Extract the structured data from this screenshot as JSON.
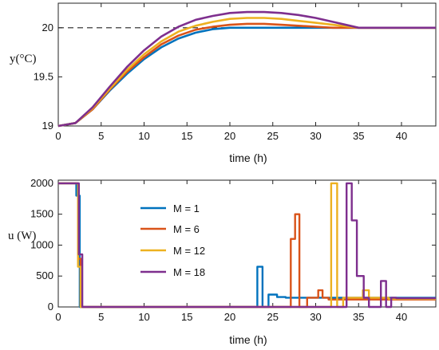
{
  "charts": [
    {
      "type": "line",
      "xlabel": "time (h)",
      "ylabel": "y(°C)",
      "xlim": [
        0,
        44
      ],
      "ylim": [
        19,
        20.25
      ],
      "xticks": [
        "0",
        "5",
        "10",
        "15",
        "20",
        "25",
        "30",
        "35",
        "40"
      ],
      "yticks": [
        "19",
        "19.5",
        "20"
      ],
      "reference": 20,
      "series_colors": [
        "#0072BD",
        "#D95319",
        "#EDB120",
        "#7E2F8E"
      ]
    },
    {
      "type": "line",
      "xlabel": "time (h)",
      "ylabel": "u (W)",
      "xlim": [
        0,
        44
      ],
      "ylim": [
        0,
        2050
      ],
      "xticks": [
        "0",
        "5",
        "10",
        "15",
        "20",
        "25",
        "30",
        "35",
        "40"
      ],
      "yticks": [
        "0",
        "500",
        "1000",
        "1500",
        "2000"
      ],
      "legend": [
        "M = 1",
        "M = 6",
        "M = 12",
        "M  = 18"
      ],
      "series_colors": [
        "#0072BD",
        "#D95319",
        "#EDB120",
        "#7E2F8E"
      ]
    }
  ],
  "chart_data": [
    {
      "type": "line",
      "xlabel": "time (h)",
      "ylabel": "y(°C)",
      "xlim": [
        0,
        44
      ],
      "ylim": [
        19,
        20.25
      ],
      "reference_line": 20,
      "series": [
        {
          "x": [
            0,
            2,
            4,
            6,
            8,
            10,
            12,
            14,
            16,
            18,
            20,
            22,
            24,
            26,
            28,
            30,
            32,
            34,
            35,
            36,
            40,
            44
          ],
          "values": [
            19,
            19.03,
            19.17,
            19.36,
            19.53,
            19.68,
            19.8,
            19.89,
            19.95,
            19.985,
            20,
            20,
            20,
            20,
            20,
            20,
            20,
            20,
            20,
            20,
            20,
            20
          ]
        },
        {
          "x": [
            0,
            2,
            4,
            6,
            8,
            10,
            12,
            14,
            16,
            18,
            20,
            22,
            24,
            26,
            28,
            30,
            32,
            34,
            35,
            36,
            40,
            44
          ],
          "values": [
            19,
            19.03,
            19.17,
            19.37,
            19.55,
            19.7,
            19.83,
            19.92,
            19.98,
            20.01,
            20.03,
            20.04,
            20.04,
            20.03,
            20.02,
            20.01,
            20.0,
            20.0,
            20,
            20,
            20,
            20
          ]
        },
        {
          "x": [
            0,
            2,
            4,
            6,
            8,
            10,
            12,
            14,
            16,
            18,
            20,
            22,
            24,
            26,
            28,
            30,
            32,
            34,
            35,
            36,
            40,
            44
          ],
          "values": [
            19,
            19.03,
            19.18,
            19.38,
            19.57,
            19.73,
            19.86,
            19.96,
            20.02,
            20.06,
            20.09,
            20.1,
            20.1,
            20.09,
            20.07,
            20.05,
            20.03,
            20.01,
            20,
            20,
            20,
            20
          ]
        },
        {
          "x": [
            0,
            2,
            4,
            6,
            8,
            10,
            12,
            14,
            16,
            18,
            20,
            22,
            24,
            26,
            28,
            30,
            32,
            34,
            35,
            36,
            40,
            44
          ],
          "values": [
            19,
            19.03,
            19.19,
            19.4,
            19.6,
            19.77,
            19.91,
            20.01,
            20.08,
            20.12,
            20.15,
            20.16,
            20.16,
            20.15,
            20.13,
            20.1,
            20.06,
            20.02,
            20,
            20,
            20,
            20
          ]
        }
      ]
    },
    {
      "type": "line",
      "xlabel": "time (h)",
      "ylabel": "u (W)",
      "xlim": [
        0,
        44
      ],
      "ylim": [
        0,
        2050
      ],
      "legend": [
        "M = 1",
        "M = 6",
        "M = 12",
        "M  = 18"
      ],
      "series": [
        {
          "name": "M = 1",
          "x": [
            0,
            2.1,
            2.1,
            2.5,
            2.5,
            23.2,
            23.2,
            23.8,
            23.8,
            24.5,
            24.5,
            25.5,
            25.5,
            26.5,
            26.5,
            44
          ],
          "values": [
            2000,
            2000,
            1800,
            1800,
            0,
            0,
            650,
            650,
            0,
            0,
            200,
            200,
            160,
            160,
            150,
            150
          ]
        },
        {
          "name": "M = 6",
          "x": [
            0,
            2.3,
            2.3,
            2.6,
            2.6,
            27.1,
            27.1,
            27.6,
            27.6,
            28.1,
            28.1,
            29.0,
            29.0,
            30.3,
            30.3,
            30.8,
            30.8,
            31.5,
            31.5,
            44
          ],
          "values": [
            2000,
            2000,
            780,
            780,
            0,
            0,
            1100,
            1100,
            1500,
            1500,
            0,
            0,
            150,
            150,
            270,
            270,
            150,
            150,
            120,
            120
          ]
        },
        {
          "name": "M = 12",
          "x": [
            0,
            2.3,
            2.3,
            2.6,
            2.6,
            31.8,
            31.8,
            32.5,
            32.5,
            33.2,
            33.2,
            35.5,
            35.5,
            36.2,
            36.2,
            38.5,
            38.5,
            44
          ],
          "values": [
            2000,
            2000,
            650,
            650,
            0,
            0,
            2000,
            2000,
            0,
            0,
            150,
            150,
            270,
            270,
            150,
            150,
            130,
            130
          ]
        },
        {
          "name": "M  = 18",
          "x": [
            0,
            2.4,
            2.4,
            2.8,
            2.8,
            33.6,
            33.6,
            34.2,
            34.2,
            34.8,
            34.8,
            35.6,
            35.6,
            36.2,
            36.2,
            37.6,
            37.6,
            38.2,
            38.2,
            38.8,
            38.8,
            39.4,
            39.4,
            44
          ],
          "values": [
            2000,
            2000,
            850,
            850,
            0,
            0,
            2000,
            2000,
            1400,
            1400,
            500,
            500,
            150,
            150,
            0,
            0,
            420,
            420,
            0,
            0,
            150,
            150,
            140,
            140
          ]
        }
      ]
    }
  ]
}
